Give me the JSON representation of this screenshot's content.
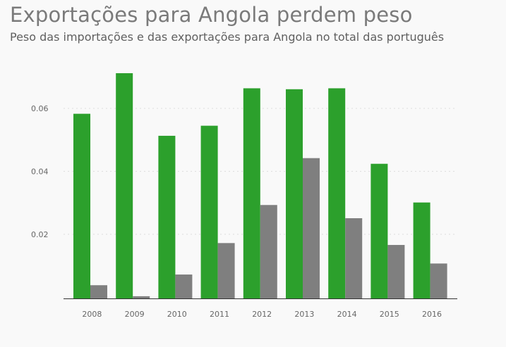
{
  "title": "Exportações para Angola perdem peso",
  "subtitle": "Peso das importações e das exportações para Angola no total das português",
  "colors": {
    "export": "#2ca02c",
    "import": "#7f7f7f",
    "grid": "#dddddd",
    "axis": "#333333"
  },
  "chart_data": {
    "type": "bar",
    "categories": [
      "2008",
      "2009",
      "2010",
      "2011",
      "2012",
      "2013",
      "2014",
      "2015",
      "2016"
    ],
    "series": [
      {
        "values": [
          0.0583,
          0.0712,
          0.0513,
          0.0545,
          0.0664,
          0.0661,
          0.0664,
          0.0424,
          0.0301
        ]
      },
      {
        "values": [
          0.0038,
          0.0003,
          0.0072,
          0.0172,
          0.0293,
          0.0442,
          0.0251,
          0.0166,
          0.0107
        ]
      }
    ],
    "ylim": [
      -0.0004,
      0.075
    ],
    "yticks": [
      0.02,
      0.04,
      0.06
    ],
    "ytick_labels": [
      "0.02",
      "0.04",
      "0.06"
    ],
    "grid": true,
    "legend": "none"
  }
}
